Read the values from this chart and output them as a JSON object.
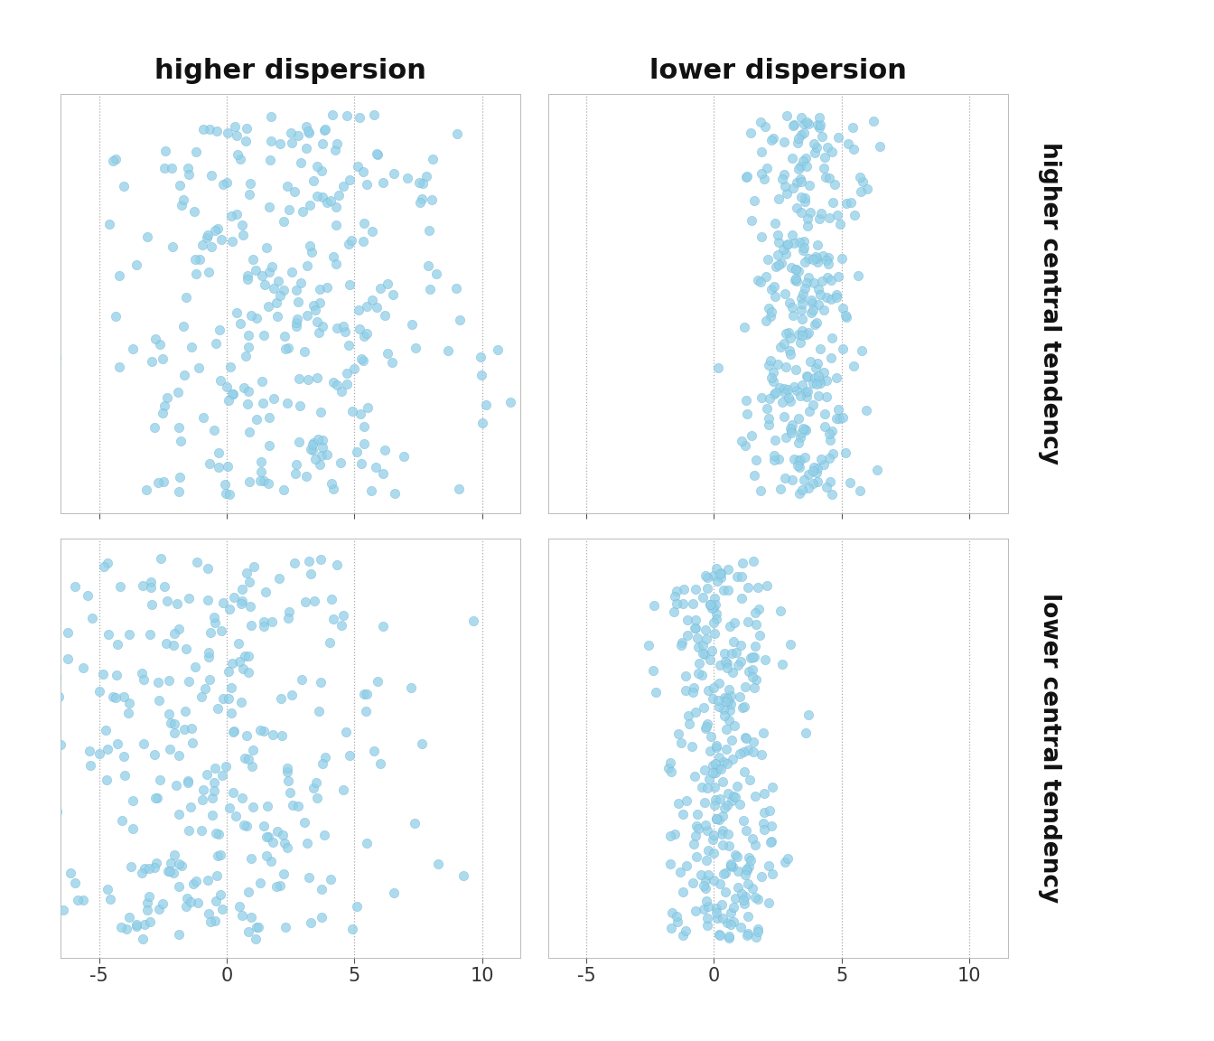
{
  "col_labels": [
    "higher dispersion",
    "lower dispersion"
  ],
  "row_labels": [
    "higher central tendency",
    "lower central tendency"
  ],
  "point_color": "#92D0E8",
  "point_edge_color": "#70B8D8",
  "point_alpha": 0.75,
  "point_size": 55,
  "xlim": [
    -6.5,
    11.5
  ],
  "xticks": [
    -5,
    0,
    5,
    10
  ],
  "background_color": "#ffffff",
  "grid_color": "#aaaaaa",
  "n_points": 300,
  "distributions": {
    "high_disp_high_ct": {
      "mean": 2.5,
      "std": 3.5,
      "seed": 42
    },
    "low_disp_high_ct": {
      "mean": 3.5,
      "std": 1.1,
      "seed": 43
    },
    "high_disp_low_ct": {
      "mean": -0.5,
      "std": 3.5,
      "seed": 44
    },
    "low_disp_low_ct": {
      "mean": 0.3,
      "std": 1.1,
      "seed": 45
    }
  },
  "jitter_seeds": {
    "high_disp_high_ct": 142,
    "low_disp_high_ct": 143,
    "high_disp_low_ct": 144,
    "low_disp_low_ct": 145
  },
  "col_label_fontsize": 22,
  "tick_fontsize": 15,
  "row_label_fontsize": 19
}
